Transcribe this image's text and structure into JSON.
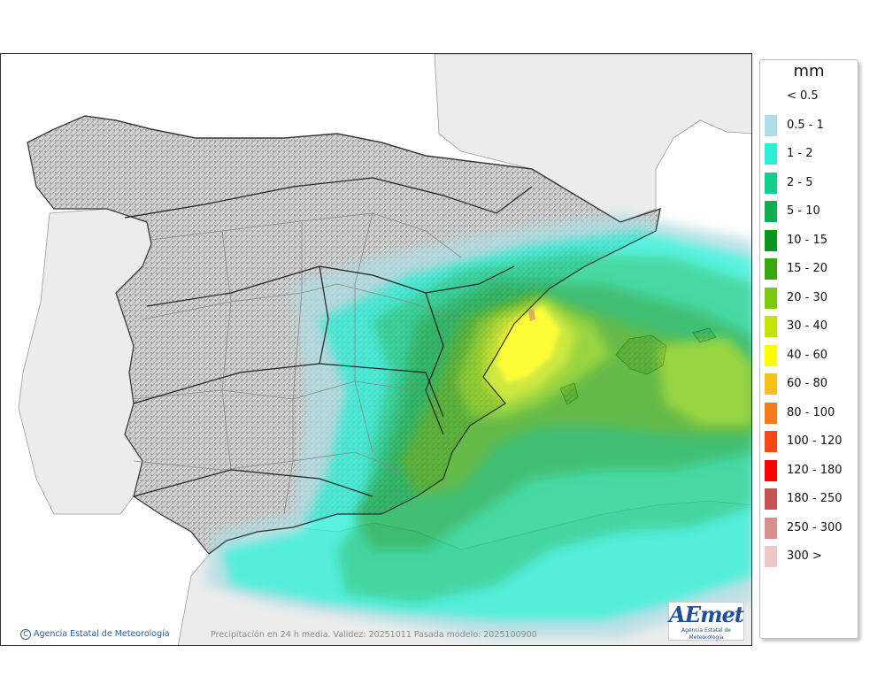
{
  "map": {
    "credit": "Agencia Estatal de Meteorología",
    "note": "Precipitación en 24 h media. Validez: 20251011 Pasada modelo: 2025100900",
    "logo": {
      "word": "AEmet",
      "sub": "Agencia Estatal de Meteorología",
      "color": "#1f4f9b"
    }
  },
  "legend": {
    "unit": "mm",
    "items": [
      {
        "label": "< 0.5",
        "color": ""
      },
      {
        "label": "0.5 - 1",
        "color": "#b0dde3"
      },
      {
        "label": "1 - 2",
        "color": "#2cefd6"
      },
      {
        "label": "2 - 5",
        "color": "#13cf8b"
      },
      {
        "label": "5 - 10",
        "color": "#10ae4f"
      },
      {
        "label": "10 - 15",
        "color": "#07951c"
      },
      {
        "label": "15 - 20",
        "color": "#3aa812"
      },
      {
        "label": "20 - 30",
        "color": "#7bc90e"
      },
      {
        "label": "30 - 40",
        "color": "#c2e308"
      },
      {
        "label": "40 - 60",
        "color": "#fdfd00"
      },
      {
        "label": "60 - 80",
        "color": "#f8c018"
      },
      {
        "label": "80 - 100",
        "color": "#f87b15"
      },
      {
        "label": "100 - 120",
        "color": "#fa4815"
      },
      {
        "label": "120 - 180",
        "color": "#fb0100"
      },
      {
        "label": "180 - 250",
        "color": "#c55555"
      },
      {
        "label": "250 - 300",
        "color": "#da8e8e"
      },
      {
        "label": "300 >",
        "color": "#eec8c8"
      }
    ]
  }
}
